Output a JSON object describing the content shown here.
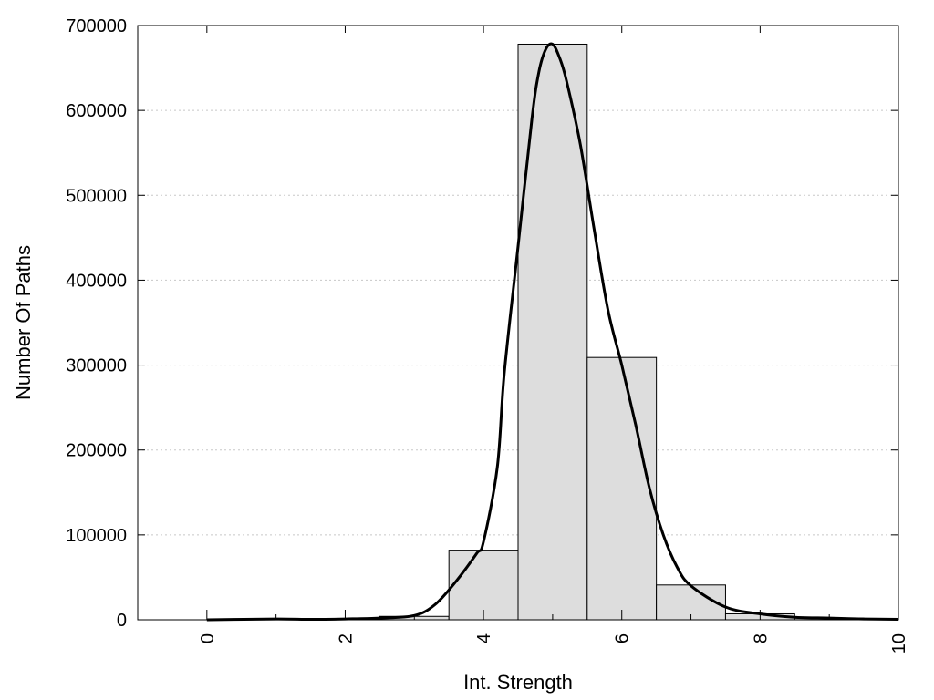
{
  "chart_data": {
    "type": "bar",
    "title": "",
    "xlabel": "Int. Strength",
    "ylabel": "Number Of Paths",
    "xlim": [
      -1,
      10
    ],
    "ylim": [
      0,
      700000
    ],
    "x_ticks": [
      0,
      2,
      4,
      6,
      8,
      10
    ],
    "x_tick_labels": [
      "0",
      "2",
      "4",
      "6",
      "8",
      "10"
    ],
    "y_ticks": [
      0,
      100000,
      200000,
      300000,
      400000,
      500000,
      600000,
      700000
    ],
    "y_tick_labels": [
      "0",
      "100000",
      "200000",
      "300000",
      "400000",
      "500000",
      "600000",
      "700000"
    ],
    "grid": "horizontal dotted",
    "bar_color": "#dddddd",
    "bar_edge_color": "#000000",
    "bins": [
      {
        "x0": -0.5,
        "x1": 0.5,
        "value": 0
      },
      {
        "x0": 0.5,
        "x1": 1.5,
        "value": 500
      },
      {
        "x0": 1.5,
        "x1": 2.5,
        "value": 1000
      },
      {
        "x0": 2.5,
        "x1": 3.5,
        "value": 4000
      },
      {
        "x0": 3.5,
        "x1": 4.5,
        "value": 82000
      },
      {
        "x0": 4.5,
        "x1": 5.5,
        "value": 678000
      },
      {
        "x0": 5.5,
        "x1": 6.5,
        "value": 309000
      },
      {
        "x0": 6.5,
        "x1": 7.5,
        "value": 41000
      },
      {
        "x0": 7.5,
        "x1": 8.5,
        "value": 7000
      },
      {
        "x0": 8.5,
        "x1": 9.5,
        "value": 2000
      },
      {
        "x0": 9.5,
        "x1": 10,
        "value": 1000
      }
    ],
    "curve": {
      "color": "#000000",
      "x": [
        0,
        1,
        1.5,
        2,
        2.5,
        3,
        3.3,
        3.6,
        3.9,
        4.0,
        4.2,
        4.3,
        4.5,
        4.7,
        4.8,
        4.9,
        5.0,
        5.1,
        5.2,
        5.4,
        5.6,
        5.8,
        6.0,
        6.2,
        6.4,
        6.6,
        6.8,
        7.0,
        7.5,
        8.0,
        8.5,
        9.0,
        9.5,
        10
      ],
      "y": [
        0,
        1000,
        500,
        1000,
        2000,
        5000,
        18000,
        45000,
        78000,
        92000,
        180000,
        290000,
        440000,
        590000,
        645000,
        672000,
        678000,
        662000,
        635000,
        560000,
        460000,
        365000,
        300000,
        230000,
        155000,
        100000,
        62000,
        40000,
        15000,
        7000,
        3000,
        2000,
        1000,
        500
      ]
    }
  }
}
